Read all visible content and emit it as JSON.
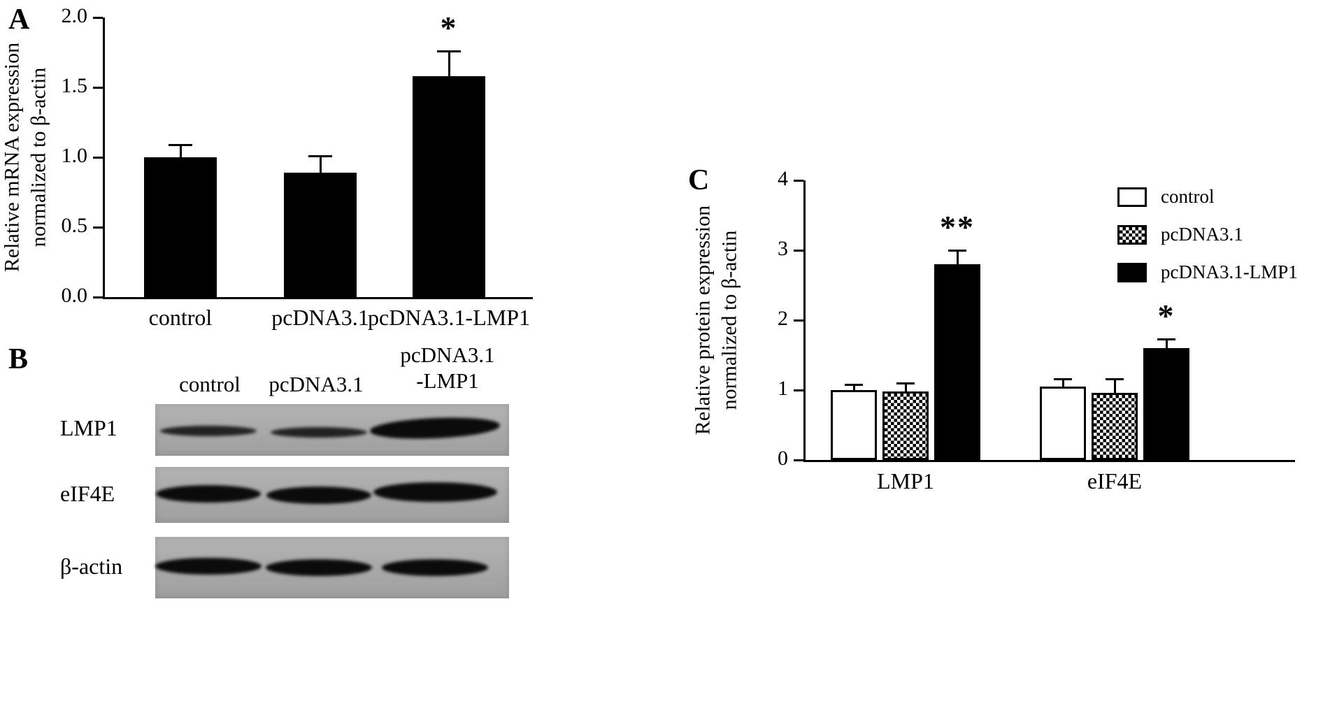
{
  "panels": {
    "a": "A",
    "b": "B",
    "c": "C"
  },
  "chart_data": [
    {
      "id": "panel-a",
      "type": "bar",
      "title": "",
      "ylabel_lines": [
        "Relative mRNA expression",
        "normalized to β-actin"
      ],
      "categories": [
        "control",
        "pcDNA3.1",
        "pcDNA3.1-LMP1"
      ],
      "values": [
        1.0,
        0.89,
        1.58
      ],
      "errors": [
        0.09,
        0.12,
        0.18
      ],
      "annotations": [
        "",
        "",
        "*"
      ],
      "ylim": [
        0,
        2.0
      ],
      "yticks": [
        0,
        0.5,
        1.0,
        1.5,
        2.0
      ],
      "ytick_labels": [
        "0.0",
        "0.5",
        "1.0",
        "1.5",
        "2.0"
      ],
      "bar_color": "#000000",
      "grid": false
    },
    {
      "id": "panel-c",
      "type": "grouped-bar",
      "title": "",
      "ylabel_lines": [
        "Relative protein expression",
        "normalized to β-actin"
      ],
      "categories": [
        "LMP1",
        "eIF4E"
      ],
      "series": [
        {
          "name": "control",
          "fill": "white",
          "values": [
            1.0,
            1.05
          ],
          "errors": [
            0.08,
            0.11
          ]
        },
        {
          "name": "pcDNA3.1",
          "fill": "checker",
          "values": [
            0.98,
            0.96
          ],
          "errors": [
            0.12,
            0.2
          ]
        },
        {
          "name": "pcDNA3.1-LMP1",
          "fill": "black",
          "values": [
            2.8,
            1.6
          ],
          "errors": [
            0.2,
            0.13
          ]
        }
      ],
      "annotations": [
        {
          "category": "LMP1",
          "series": "pcDNA3.1-LMP1",
          "text": "**"
        },
        {
          "category": "eIF4E",
          "series": "pcDNA3.1-LMP1",
          "text": "*"
        }
      ],
      "ylim": [
        0,
        4
      ],
      "yticks": [
        0,
        1,
        2,
        3,
        4
      ],
      "ytick_labels": [
        "0",
        "1",
        "2",
        "3",
        "4"
      ],
      "legend_position": "top-right",
      "bar_color": "#000000",
      "grid": false
    }
  ],
  "blot": {
    "background": "#ababab",
    "column_headers": [
      {
        "lines": [
          "control"
        ]
      },
      {
        "lines": [
          "pcDNA3.1"
        ]
      },
      {
        "lines": [
          "pcDNA3.1",
          "-LMP1"
        ]
      }
    ],
    "rows": [
      {
        "label": "LMP1",
        "bands": [
          {
            "lane": "control",
            "strength": "medium"
          },
          {
            "lane": "pcDNA3.1",
            "strength": "medium"
          },
          {
            "lane": "pcDNA3.1-LMP1",
            "strength": "strong"
          }
        ]
      },
      {
        "label": "eIF4E",
        "bands": [
          {
            "lane": "control",
            "strength": "dark"
          },
          {
            "lane": "pcDNA3.1",
            "strength": "dark"
          },
          {
            "lane": "pcDNA3.1-LMP1",
            "strength": "darkwide"
          }
        ]
      },
      {
        "label": "β-actin",
        "bands": [
          {
            "lane": "control",
            "strength": "dark"
          },
          {
            "lane": "pcDNA3.1",
            "strength": "dark"
          },
          {
            "lane": "pcDNA3.1-LMP1",
            "strength": "dark"
          }
        ]
      }
    ]
  }
}
